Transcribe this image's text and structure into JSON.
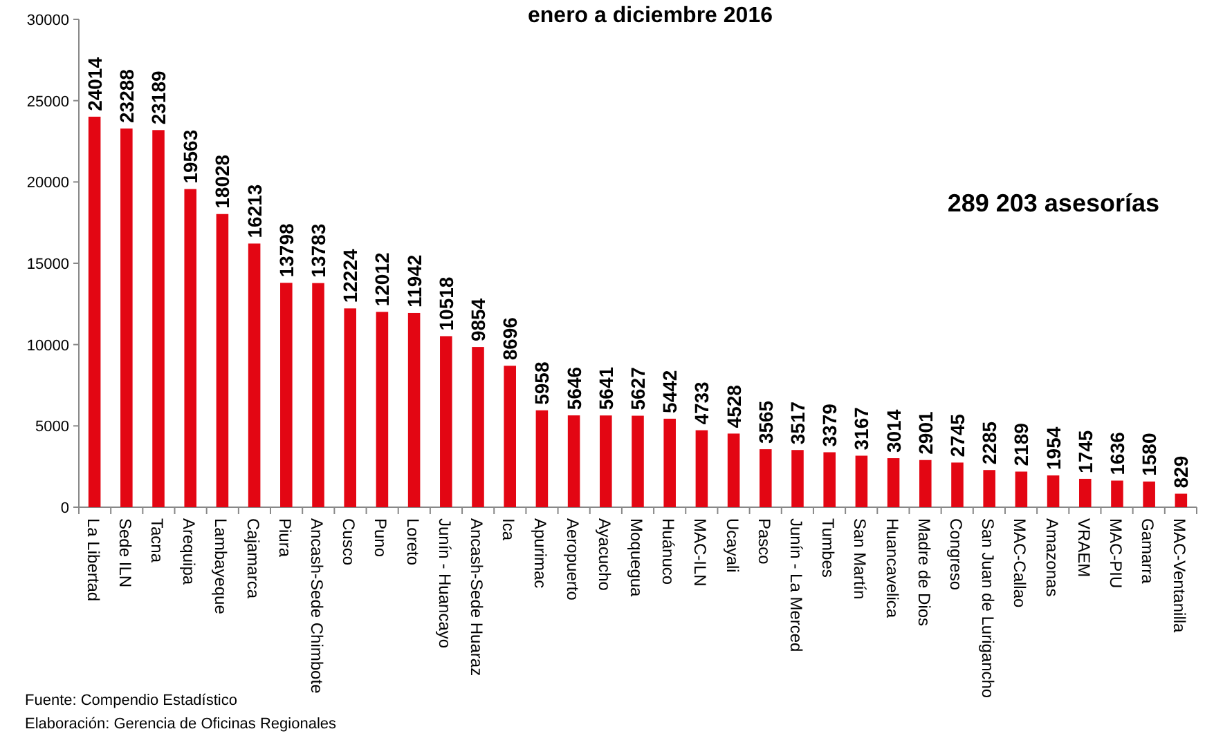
{
  "chart_data": {
    "type": "bar",
    "title": "enero a diciembre 2016",
    "categories": [
      "La Libertad",
      "Sede ILN",
      "Tacna",
      "Arequipa",
      "Lambayeque",
      "Cajamarca",
      "Piura",
      "Ancash-Sede Chimbote",
      "Cusco",
      "Puno",
      "Loreto",
      "Junín - Huancayo",
      "Ancash-Sede Huaraz",
      "Ica",
      "Apurimac",
      "Aeropuerto",
      "Ayacucho",
      "Moquegua",
      "Huánuco",
      "MAC-ILN",
      "Ucayali",
      "Pasco",
      "Junín - La Merced",
      "Tumbes",
      "San Martín",
      "Huancavelica",
      "Madre de Dios",
      "Congreso",
      "San Juan de Lurigancho",
      "MAC-Callao",
      "Amazonas",
      "VRAEM",
      "MAC-PIU",
      "Gamarra",
      "MAC-Ventanilla"
    ],
    "values": [
      24014,
      23288,
      23189,
      19563,
      18028,
      16213,
      13798,
      13783,
      12224,
      12012,
      11942,
      10518,
      9854,
      8696,
      5958,
      5646,
      5641,
      5627,
      5442,
      4733,
      4528,
      3565,
      3517,
      3379,
      3167,
      3014,
      2901,
      2745,
      2285,
      2189,
      1954,
      1745,
      1636,
      1580,
      829
    ],
    "color": "#e30613",
    "data_labels": true,
    "ylim": [
      0,
      30000
    ],
    "yticks": [
      0,
      5000,
      10000,
      15000,
      20000,
      25000,
      30000
    ],
    "grid": false,
    "annotations": [
      "289 203 asesorías",
      "Fuente:  Compendio Estadístico",
      "Elaboración: Gerencia de Oficinas Regionales"
    ]
  }
}
